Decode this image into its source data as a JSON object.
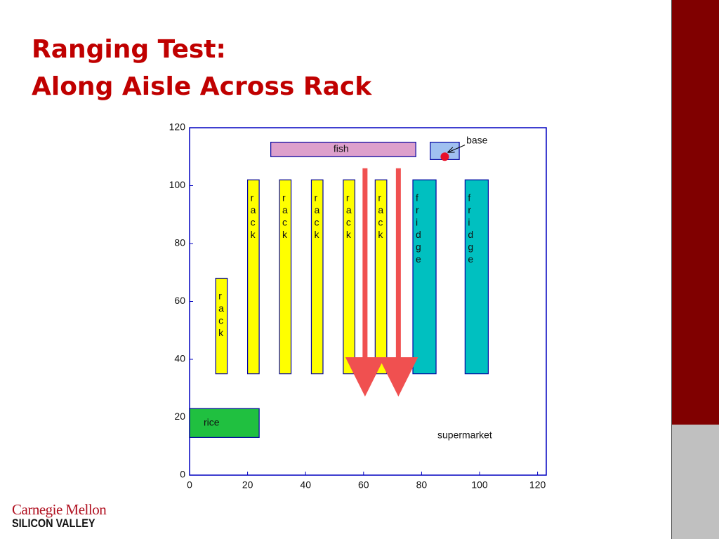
{
  "title": [
    "Ranging Test:",
    "Along Aisle Across Rack"
  ],
  "logo": [
    "Carnegie Mellon",
    "SILICON VALLEY"
  ],
  "chart_data": {
    "type": "floorplan",
    "xlim": [
      0,
      123
    ],
    "ylim": [
      0,
      120
    ],
    "xticks": [
      0,
      20,
      40,
      60,
      80,
      100,
      120
    ],
    "yticks": [
      0,
      20,
      40,
      60,
      80,
      100,
      120
    ],
    "areas": [
      {
        "label": "fish",
        "color": "#dda0cc",
        "x": [
          28,
          78
        ],
        "y": [
          110,
          115
        ]
      },
      {
        "label": "rack",
        "color": "#ffff00",
        "x": [
          9,
          13
        ],
        "y": [
          35,
          68
        ]
      },
      {
        "label": "rack",
        "color": "#ffff00",
        "x": [
          20,
          24
        ],
        "y": [
          35,
          102
        ]
      },
      {
        "label": "rack",
        "color": "#ffff00",
        "x": [
          31,
          35
        ],
        "y": [
          35,
          102
        ]
      },
      {
        "label": "rack",
        "color": "#ffff00",
        "x": [
          42,
          46
        ],
        "y": [
          35,
          102
        ]
      },
      {
        "label": "rack",
        "color": "#ffff00",
        "x": [
          53,
          57
        ],
        "y": [
          35,
          102
        ]
      },
      {
        "label": "rack",
        "color": "#ffff00",
        "x": [
          64,
          68
        ],
        "y": [
          35,
          102
        ]
      },
      {
        "label": "fridge",
        "color": "#00c0c0",
        "x": [
          77,
          85
        ],
        "y": [
          35,
          102
        ]
      },
      {
        "label": "fridge",
        "color": "#00c0c0",
        "x": [
          95,
          103
        ],
        "y": [
          35,
          102
        ]
      },
      {
        "label": "rice",
        "color": "#20c040",
        "x": [
          0,
          24
        ],
        "y": [
          13,
          23
        ]
      }
    ],
    "base": {
      "label": "base",
      "color": "#a0c0f0",
      "x": [
        83,
        93
      ],
      "y": [
        109,
        115
      ]
    },
    "point": {
      "color": "#e8102a",
      "x": 88,
      "y": 110
    },
    "arrows": [
      {
        "color": "#f05050",
        "x": 60.5,
        "y": [
          106,
          32.5
        ]
      },
      {
        "color": "#f05050",
        "x": 72,
        "y": [
          106,
          32.5
        ]
      }
    ],
    "annotation": "supermarket"
  }
}
